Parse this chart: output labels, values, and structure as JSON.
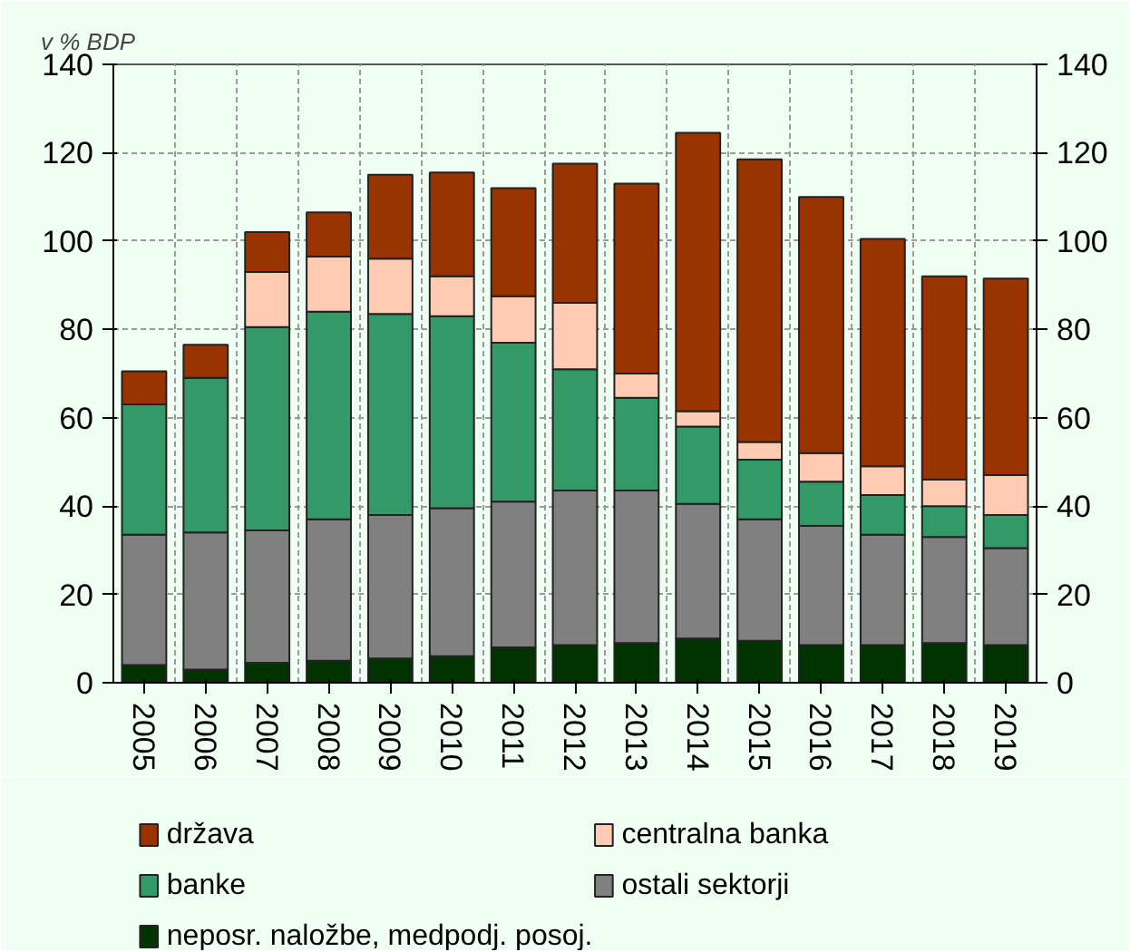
{
  "chart_data": {
    "type": "bar",
    "stacked": true,
    "ylabel": "v % BDP",
    "categories": [
      "2005",
      "2006",
      "2007",
      "2008",
      "2009",
      "2010",
      "2011",
      "2012",
      "2013",
      "2014",
      "2015",
      "2016",
      "2017",
      "2018",
      "2019"
    ],
    "series": [
      {
        "name": "neposr. naložbe, medpodj. posoj.",
        "color": "#003300",
        "values": [
          4,
          3,
          4.5,
          5,
          5.5,
          6,
          8,
          8.5,
          9,
          10,
          9.5,
          8.5,
          8.5,
          9,
          8.5
        ]
      },
      {
        "name": "ostali sektorji",
        "color": "#808080",
        "values": [
          29.5,
          31,
          30,
          32,
          32.5,
          33.5,
          33,
          35,
          34.5,
          30.5,
          27.5,
          27,
          25,
          24,
          22
        ]
      },
      {
        "name": "banke",
        "color": "#339966",
        "values": [
          29.5,
          35,
          46,
          47,
          45.5,
          43.5,
          36,
          27.5,
          21,
          17.5,
          13.5,
          10,
          9,
          7,
          7.5
        ]
      },
      {
        "name": "centralna banka",
        "color": "#ffccb3",
        "values": [
          null,
          0,
          12.5,
          12.5,
          12.5,
          9,
          10.5,
          15,
          5.5,
          3.5,
          4,
          6.5,
          6.5,
          6,
          9
        ]
      },
      {
        "name": "država",
        "color": "#993300",
        "values": [
          7.5,
          7.5,
          9,
          10,
          19,
          23.5,
          24.5,
          31.5,
          43,
          63,
          64,
          58,
          51.5,
          46,
          44.5
        ]
      }
    ],
    "ylim": [
      0,
      140
    ],
    "yticks": [
      0,
      20,
      40,
      60,
      80,
      100,
      120,
      140
    ],
    "y2lim": [
      0,
      140
    ],
    "y2ticks": [
      0,
      20,
      40,
      60,
      80,
      100,
      120,
      140
    ],
    "grid": true,
    "legend": "bottom"
  }
}
